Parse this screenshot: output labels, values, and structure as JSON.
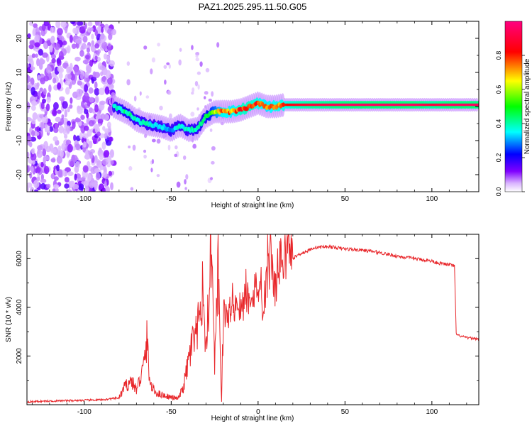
{
  "title": "PAZ1.2025.295.11.50.G05",
  "chart_data": [
    {
      "type": "heatmap",
      "xlabel": "Height of straight line (km)",
      "ylabel": "Frequency (Hz)",
      "xlim": [
        -133,
        127
      ],
      "ylim": [
        -25,
        25
      ],
      "xticks": [
        -100,
        -50,
        0,
        50,
        100
      ],
      "xtick_labels": [
        "-100",
        "-50",
        "0",
        "50",
        "100"
      ],
      "yticks": [
        -20,
        -10,
        0,
        10,
        20
      ],
      "ytick_labels": [
        "-20",
        "-10",
        "0",
        "10",
        "20"
      ],
      "colorbar": {
        "label": "Normalized spectral amplitude",
        "range": [
          0,
          1
        ],
        "ticks": [
          0.0,
          0.2,
          0.4,
          0.6,
          0.8
        ],
        "tick_labels": [
          "0.0",
          "0.2",
          "0.4",
          "0.6",
          "0.8"
        ],
        "colormap": "rainbow (white, violet, blue, cyan, green, yellow, red, magenta)"
      },
      "ridge": {
        "description": "frequency of main spectral peak vs height",
        "x": [
          -83,
          -75,
          -70,
          -65,
          -60,
          -55,
          -50,
          -45,
          -40,
          -35,
          -30,
          -25,
          -20,
          -15,
          -10,
          -5,
          0,
          5,
          10,
          15,
          20,
          30,
          40,
          50,
          60,
          70,
          80,
          90,
          100,
          110,
          120,
          127
        ],
        "y": [
          0,
          -2,
          -4,
          -5,
          -5.5,
          -6,
          -7,
          -5.5,
          -7,
          -6.5,
          -3,
          -1.5,
          -1.5,
          -1.5,
          -1,
          0,
          1,
          0,
          0,
          0.5,
          0.5,
          0.5,
          0.5,
          0.5,
          0.5,
          0.5,
          0.5,
          0.5,
          0.5,
          0.5,
          0.5,
          0.5
        ],
        "amplitude": [
          0.4,
          0.45,
          0.4,
          0.4,
          0.38,
          0.35,
          0.3,
          0.4,
          0.4,
          0.42,
          0.45,
          0.6,
          0.8,
          0.75,
          0.85,
          0.85,
          0.8,
          0.75,
          0.8,
          0.8,
          0.85,
          0.9,
          0.92,
          0.95,
          0.95,
          0.95,
          0.95,
          0.95,
          0.9,
          0.95,
          0.95,
          0.95
        ]
      },
      "noise_region": {
        "x_range": [
          -133,
          -83
        ],
        "y_range": [
          -25,
          25
        ],
        "amplitude": "0.1-0.3 scattered"
      }
    },
    {
      "type": "line",
      "xlabel": "Height of straight line (km)",
      "ylabel": "SNR (10 * v/v)",
      "xlim": [
        -133,
        127
      ],
      "ylim": [
        0,
        7000
      ],
      "xticks": [
        -100,
        -50,
        0,
        50,
        100
      ],
      "xtick_labels": [
        "-100",
        "-50",
        "0",
        "50",
        "100"
      ],
      "yticks": [
        2000,
        4000,
        6000
      ],
      "ytick_labels": [
        "2000",
        "4000",
        "6000"
      ],
      "color": "#e8262a",
      "series": [
        {
          "name": "SNR",
          "x": [
            -133,
            -120,
            -100,
            -90,
            -80,
            -77,
            -73,
            -70,
            -66,
            -64,
            -62,
            -59,
            -55,
            -50,
            -46,
            -43,
            -40,
            -38,
            -35,
            -32,
            -30,
            -27,
            -25,
            -23,
            -21,
            -20,
            -17,
            -14,
            -10,
            -7,
            -4,
            0,
            3,
            5,
            8,
            10,
            12,
            15,
            18,
            19,
            20,
            24,
            28,
            32,
            40,
            50,
            60,
            70,
            80,
            90,
            100,
            105,
            110,
            113,
            114,
            115,
            120,
            127
          ],
          "y": [
            120,
            150,
            180,
            200,
            280,
            700,
            1000,
            600,
            1500,
            2600,
            800,
            500,
            400,
            300,
            250,
            700,
            1800,
            2500,
            2800,
            5000,
            2000,
            6400,
            1400,
            5500,
            100,
            3700,
            3800,
            4100,
            4000,
            4300,
            4600,
            4900,
            3900,
            5300,
            5800,
            4700,
            5900,
            6000,
            6700,
            6200,
            6000,
            6200,
            6300,
            6450,
            6500,
            6400,
            6350,
            6250,
            6100,
            6000,
            5900,
            5800,
            5750,
            5700,
            2900,
            2850,
            2750,
            2700
          ]
        }
      ]
    }
  ]
}
